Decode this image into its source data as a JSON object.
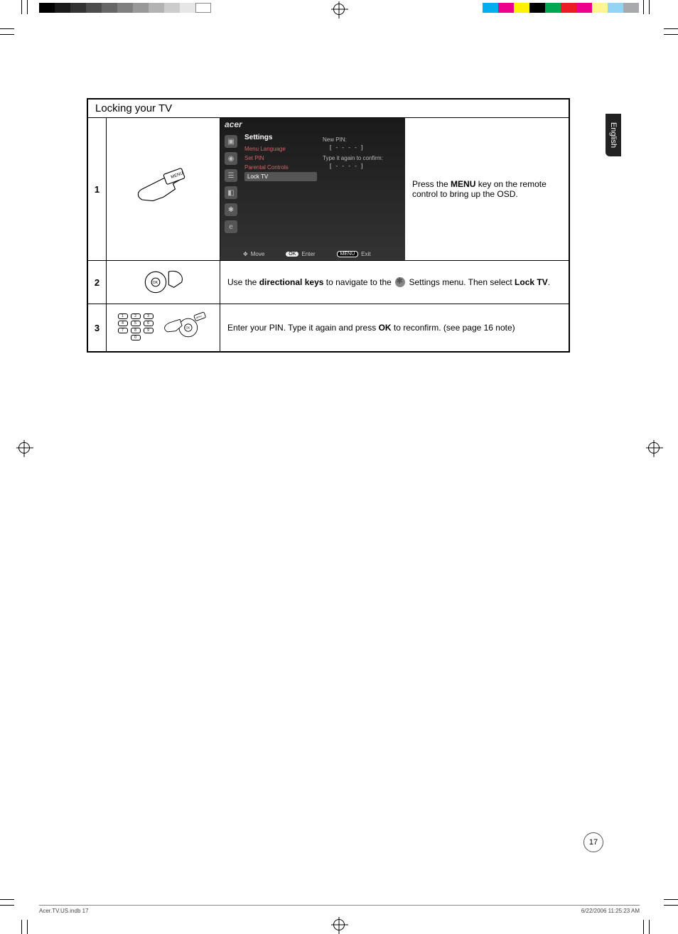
{
  "print_marks": {
    "grayscale": [
      "#000000",
      "#1a1a1a",
      "#333333",
      "#4d4d4d",
      "#666666",
      "#808080",
      "#999999",
      "#b3b3b3",
      "#cccccc",
      "#e6e6e6",
      "#ffffff"
    ],
    "colors": [
      "#00aeef",
      "#ec008c",
      "#fff200",
      "#000000",
      "#00a651",
      "#ed1c24",
      "#ec008c",
      "#fff68f",
      "#92d4f4",
      "#a7a9ac"
    ]
  },
  "language_tab": "English",
  "section": {
    "title": "Locking your TV",
    "rows": [
      {
        "num": "1",
        "instruction_pre": "Press the ",
        "instruction_bold": "MENU",
        "instruction_post": " key on the remote control to bring up the OSD."
      },
      {
        "num": "2",
        "instr_a": "Use the ",
        "instr_b": "directional keys",
        "instr_c": " to navigate to the ",
        "instr_d": " Settings menu. Then select ",
        "instr_e": "Lock TV",
        "instr_f": "."
      },
      {
        "num": "3",
        "instr_a": "Enter your PIN. Type it again and press ",
        "instr_b": "OK",
        "instr_c": " to reconfirm. (see page 16 note)"
      }
    ]
  },
  "osd": {
    "brand": "acer",
    "heading": "Settings",
    "items": [
      "Menu Language",
      "Set PIN",
      "Parental Controls",
      "Lock TV"
    ],
    "selected_index": 3,
    "right": {
      "new_pin_label": "New PIN:",
      "pin_mask": "[  -   -   -   -  ]",
      "confirm_label": "Type it again to confirm:",
      "pin_mask2": "[  -   -   -   -  ]"
    },
    "footer": {
      "move": "Move",
      "enter_btn": "OK",
      "enter": "Enter",
      "exit_btn": "MENU",
      "exit": "Exit"
    },
    "icon_glyphs": [
      "▣",
      "◉",
      "☰",
      "◧",
      "✱",
      "e"
    ]
  },
  "keypad_labels": [
    "1",
    "2",
    "3",
    "4",
    "5",
    "6",
    "7",
    "8",
    "9",
    "0"
  ],
  "remote_ok_label": "OK",
  "menu_btn_label": "MENU",
  "page_number": "17",
  "footer": {
    "left": "Acer.TV.US.indb   17",
    "right": "6/22/2006   11:25:23 AM"
  }
}
